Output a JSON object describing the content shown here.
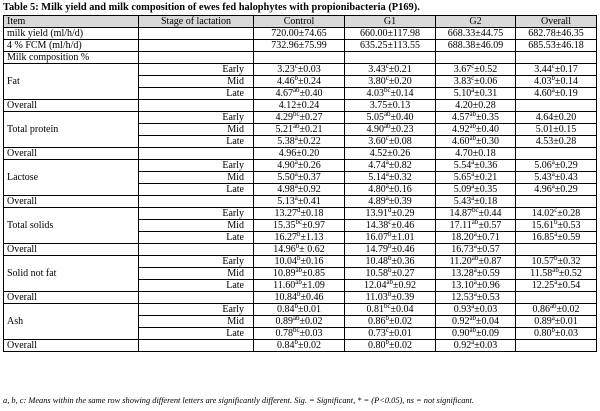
{
  "caption": "Table 5: Milk yield and milk composition of ewes fed halophytes with propionibacteria (P169).",
  "header": [
    "Item",
    "Stage of lactation",
    "Control",
    "G1",
    "G2",
    "Overall"
  ],
  "yield_rows": [
    {
      "item": "milk yield  (ml/h/d)",
      "values": [
        "720.00±74.65",
        "660.00±117.98",
        "668.33±44.75",
        "682.78±46.35"
      ]
    },
    {
      "item": "4 % FCM  (ml/h/d)",
      "values": [
        "732.96±75.99",
        "635.25±113.55",
        "688.38±46.09",
        "685.53±46.18"
      ]
    }
  ],
  "composition_label": "Milk composition %",
  "groups": [
    {
      "name": "Fat",
      "rows": [
        {
          "stage": "Early",
          "values": [
            [
              "3.23",
              "c",
              "±0.03"
            ],
            [
              "3.43",
              "c",
              "±0.21"
            ],
            [
              "3.67",
              "c",
              "±0.52"
            ],
            [
              "3.44",
              "c",
              "±0.17"
            ]
          ]
        },
        {
          "stage": "Mid",
          "values": [
            [
              "4.46",
              "b",
              "±0.24"
            ],
            [
              "3.80",
              "c",
              "±0.20"
            ],
            [
              "3.83",
              "c",
              "±0.06"
            ],
            [
              "4.03",
              "b",
              "±0.14"
            ]
          ]
        },
        {
          "stage": "Late",
          "values": [
            [
              "4.67",
              "ab",
              "±0.40"
            ],
            [
              "4.03",
              "bc",
              "±0.14"
            ],
            [
              "5.10",
              "a",
              "±0.31"
            ],
            [
              "4.60",
              "a",
              "±0.19"
            ]
          ]
        }
      ],
      "overall": [
        [
          "4.12",
          "",
          "±0.24"
        ],
        [
          "3.75",
          "",
          "±0.13"
        ],
        [
          "4.20",
          "",
          "±0.28"
        ]
      ]
    },
    {
      "name": "Total protein",
      "rows": [
        {
          "stage": "Early",
          "values": [
            [
              "4.29",
              "bc",
              "±0.27"
            ],
            [
              "5.05",
              "ab",
              "±0.40"
            ],
            [
              "4.57",
              "ab",
              "±0.35"
            ],
            [
              "4.64",
              "",
              "±0.20"
            ]
          ]
        },
        {
          "stage": "Mid",
          "values": [
            [
              "5.21",
              "ab",
              "±0.21"
            ],
            [
              "4.90",
              "ab",
              "±0.23"
            ],
            [
              "4.92",
              "ab",
              "±0.40"
            ],
            [
              "5.01",
              "",
              "±0.15"
            ]
          ]
        },
        {
          "stage": "Late",
          "values": [
            [
              "5.38",
              "a",
              "±0.22"
            ],
            [
              "3.60",
              "c",
              "±0.08"
            ],
            [
              "4.60",
              "ab",
              "±0.30"
            ],
            [
              "4.53",
              "",
              "±0.28"
            ]
          ]
        }
      ],
      "overall": [
        [
          "4.96",
          "",
          "±0.20"
        ],
        [
          "4.52",
          "",
          "±0.26"
        ],
        [
          "4.70",
          "",
          "±0.18"
        ]
      ]
    },
    {
      "name": "Lactose",
      "rows": [
        {
          "stage": "Early",
          "values": [
            [
              "4.90",
              "a",
              "±0.26"
            ],
            [
              "4.74",
              "a",
              "±0.82"
            ],
            [
              "5.54",
              "a",
              "±0.36"
            ],
            [
              "5.06",
              "a",
              "±0.29"
            ]
          ]
        },
        {
          "stage": "Mid",
          "values": [
            [
              "5.50",
              "a",
              "±0.37"
            ],
            [
              "5.14",
              "a",
              "±0.32"
            ],
            [
              "5.65",
              "a",
              "±0.21"
            ],
            [
              "5.43",
              "a",
              "±0.43"
            ]
          ]
        },
        {
          "stage": "Late",
          "values": [
            [
              "4.98",
              "a",
              "±0.92"
            ],
            [
              "4.80",
              "a",
              "±0.16"
            ],
            [
              "5.09",
              "a",
              "±0.35"
            ],
            [
              "4.96",
              "a",
              "±0.29"
            ]
          ]
        }
      ],
      "overall": [
        [
          "5.13",
          "a",
          "±0.41"
        ],
        [
          "4.89",
          "a",
          "±0.39"
        ],
        [
          "5.43",
          "a",
          "±0.18"
        ]
      ]
    },
    {
      "name": "Total solids",
      "rows": [
        {
          "stage": "Early",
          "values": [
            [
              "13.27",
              "d",
              "±0.18"
            ],
            [
              "13.91",
              "d",
              "±0.29"
            ],
            [
              "14.87",
              "bc",
              "±0.44"
            ],
            [
              "14.02",
              "c",
              "±0.28"
            ]
          ]
        },
        {
          "stage": "Mid",
          "values": [
            [
              "15.35",
              "bc",
              "±0.97"
            ],
            [
              "14.38",
              "c",
              "±0.46"
            ],
            [
              "17.11",
              "ab",
              "±0.57"
            ],
            [
              "15.61",
              "b",
              "±0.53"
            ]
          ]
        },
        {
          "stage": "Late",
          "values": [
            [
              "16.27",
              "b",
              "±1.13"
            ],
            [
              "16.07",
              "b",
              "±1.01"
            ],
            [
              "18.20",
              "a",
              "±0.71"
            ],
            [
              "16.85",
              "a",
              "±0.59"
            ]
          ]
        }
      ],
      "overall": [
        [
          "14.96",
          "b",
          "± 0.62"
        ],
        [
          "14.79",
          "b",
          "±0.46"
        ],
        [
          "16.73",
          "a",
          "±0.57"
        ]
      ]
    },
    {
      "name": "Solid not fat",
      "rows": [
        {
          "stage": "Early",
          "values": [
            [
              "10.04",
              "b",
              "±0.16"
            ],
            [
              "10.48",
              "b",
              "±0.36"
            ],
            [
              "11.20",
              "ab",
              "±0.87"
            ],
            [
              "10.57",
              "b",
              "±0.32"
            ]
          ]
        },
        {
          "stage": "Mid",
          "values": [
            [
              "10.89",
              "ab",
              "±0.85"
            ],
            [
              "10.58",
              "b",
              "±0.27"
            ],
            [
              "13.28",
              "a",
              "±0.59"
            ],
            [
              "11.58",
              "ab",
              "±0.52"
            ]
          ]
        },
        {
          "stage": "Late",
          "values": [
            [
              "11.60",
              "ab",
              "±1.09"
            ],
            [
              "12.04",
              "ab",
              "±0.92"
            ],
            [
              "13.10",
              "a",
              "±0.96"
            ],
            [
              "12.25",
              "a",
              "±0.54"
            ]
          ]
        }
      ],
      "overall": [
        [
          "10.84",
          "b",
          "±0.46"
        ],
        [
          "11.03",
          "b",
          "±0.39"
        ],
        [
          "12.53",
          "a",
          "±0.53"
        ]
      ]
    },
    {
      "name": "Ash",
      "rows": [
        {
          "stage": "Early",
          "values": [
            [
              "0.84",
              "b",
              "±0.01"
            ],
            [
              "0.81",
              "bc",
              "±0.04"
            ],
            [
              "0.93",
              "a",
              "±0.03"
            ],
            [
              "0.86",
              "ab",
              "±0.02"
            ]
          ]
        },
        {
          "stage": "Mid",
          "values": [
            [
              "0.89",
              "ab",
              "±0.02"
            ],
            [
              "0.86",
              "b",
              "±0.02"
            ],
            [
              "0.92",
              "ab",
              "±0.04"
            ],
            [
              "0.89",
              "a",
              "±0.01"
            ]
          ]
        },
        {
          "stage": "Late",
          "values": [
            [
              "0.78",
              "bc",
              "±0.03"
            ],
            [
              "0.73",
              "c",
              "±0.01"
            ],
            [
              "0.90",
              "ab",
              "±0.09"
            ],
            [
              "0.80",
              "b",
              "±0.03"
            ]
          ]
        }
      ],
      "overall": [
        [
          "0.84",
          "b",
          "±0.02"
        ],
        [
          "0.80",
          "b",
          "±0.02"
        ],
        [
          "0.92",
          "a",
          "±0.03"
        ]
      ]
    }
  ],
  "overall_label": "Overall",
  "footnote": "a, b, c: Means within the same row showing different letters are significantly different.  Sig. = Significant, * = (P<0.05), ns = not significant."
}
